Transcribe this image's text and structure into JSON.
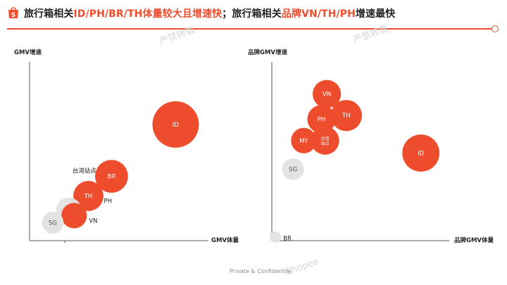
{
  "header": {
    "title_a": "旅行箱相关",
    "title_b": "ID/PH/BR/TH体量较大且增速快",
    "title_c": "；旅行箱相关",
    "title_d": "品牌VN/TH/PH",
    "title_e": "增速最快",
    "accent": "#ee4d2d"
  },
  "footer": {
    "text": "Private & Confidential"
  },
  "colors": {
    "orange": "#ee4d2d",
    "grey": "#e3e3e3",
    "grey_text": "#555555"
  },
  "chart_data": [
    {
      "type": "scatter",
      "title": "",
      "xlabel": "GMV体量",
      "ylabel": "GMV增速",
      "xlim": [
        0,
        100
      ],
      "ylim": [
        0,
        100
      ],
      "grid": false,
      "points": [
        {
          "name": "ID",
          "x": 82,
          "y": 65,
          "size": 100,
          "color": "orange",
          "label_pos": "center"
        },
        {
          "name": "BR",
          "x": 46,
          "y": 36,
          "size": 50,
          "color": "orange",
          "label_pos": "center"
        },
        {
          "name": "TH",
          "x": 33,
          "y": 25,
          "size": 42,
          "color": "orange",
          "label_pos": "center"
        },
        {
          "name": "PH",
          "x": 33,
          "y": 25,
          "size": 0,
          "color": "none",
          "label_pos": "right"
        },
        {
          "name": "MY",
          "x": 22,
          "y": 17,
          "size": 30,
          "color": "grey",
          "label_pos": "center"
        },
        {
          "name": "VN",
          "x": 25,
          "y": 14,
          "size": 30,
          "color": "orange",
          "label_pos": "right"
        },
        {
          "name": "SG",
          "x": 13,
          "y": 10,
          "size": 22,
          "color": "grey",
          "label_pos": "center"
        }
      ],
      "annotations": [
        {
          "text": "台湾站点",
          "x": 24,
          "y": 38
        }
      ]
    },
    {
      "type": "scatter",
      "title": "",
      "xlabel": "品牌GMV体量",
      "ylabel": "品牌GMV增速",
      "xlim": [
        0,
        100
      ],
      "ylim": [
        0,
        100
      ],
      "grid": false,
      "points": [
        {
          "name": "VN",
          "x": 31,
          "y": 82,
          "size": 37,
          "color": "orange",
          "label_pos": "center"
        },
        {
          "name": "TH",
          "x": 42,
          "y": 70,
          "size": 45,
          "color": "orange",
          "label_pos": "center"
        },
        {
          "name": "PH",
          "x": 28,
          "y": 68,
          "size": 37,
          "color": "orange",
          "label_pos": "center"
        },
        {
          "name": "MY",
          "x": 18,
          "y": 56,
          "size": 30,
          "color": "orange",
          "label_pos": "center"
        },
        {
          "name": "台湾站点",
          "x": 30,
          "y": 56,
          "size": 37,
          "color": "orange",
          "label_pos": "center"
        },
        {
          "name": "ID",
          "x": 84,
          "y": 49,
          "size": 64,
          "color": "orange",
          "label_pos": "center"
        },
        {
          "name": "SG",
          "x": 12,
          "y": 40,
          "size": 22,
          "color": "grey",
          "label_pos": "center"
        },
        {
          "name": "BR",
          "x": 2,
          "y": 2,
          "size": 6,
          "color": "grey",
          "label_pos": "right"
        }
      ]
    }
  ]
}
